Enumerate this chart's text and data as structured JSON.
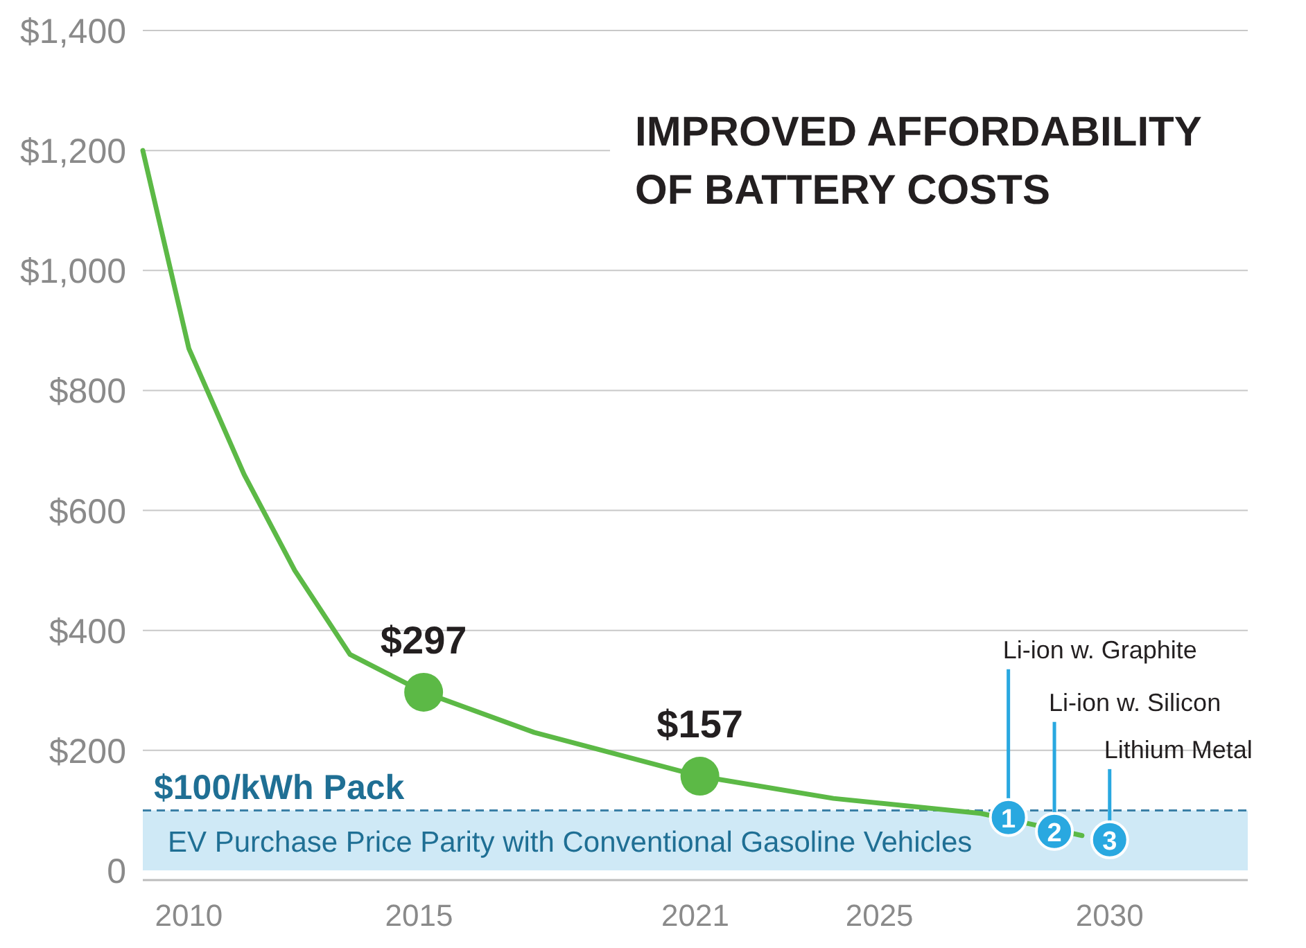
{
  "chart_data": {
    "type": "line",
    "title": "IMPROVED AFFORDABILITY OF BATTERY COSTS",
    "xlim": [
      2009,
      2033
    ],
    "xticks": [
      2010,
      2015,
      2021,
      2025,
      2030
    ],
    "ylim": [
      0,
      1400
    ],
    "yticks": [
      0,
      {
        "value": 200,
        "label": "$200"
      },
      {
        "value": 400,
        "label": "$400"
      },
      {
        "value": 600,
        "label": "$600"
      },
      {
        "value": 800,
        "label": "$800"
      },
      {
        "value": 1000,
        "label": "$1,000"
      },
      {
        "value": 1200,
        "label": "$1,200"
      },
      {
        "value": 1400,
        "label": "$1,400"
      }
    ],
    "grid": "y",
    "line_style": "solid",
    "series": [
      {
        "color": "#5cb946",
        "x": [
          2009,
          2010,
          2011.2,
          2012.3,
          2013.5,
          2015.1,
          2017.5,
          2021.1,
          2024,
          2027.2,
          2028.3,
          2029.4
        ],
        "values": [
          1200,
          870,
          660,
          500,
          360,
          297,
          230,
          157,
          120,
          95,
          77,
          58
        ]
      },
      {
        "type": "scatter",
        "color": "#5cb946",
        "x": [
          2015.1,
          2021.1
        ],
        "values": [
          297,
          157
        ],
        "value_labels": [
          "$297",
          "$157"
        ]
      },
      {
        "type": "scatter",
        "color": "#29a8e0",
        "x": [
          2027.8,
          2028.8,
          2030
        ],
        "values": [
          88,
          65,
          51
        ]
      }
    ],
    "ref_lines": [
      {
        "axis": "y",
        "value": 100,
        "label": "$100/kWh Pack",
        "color": "#3a7fa6",
        "line_style": "dashed"
      }
    ],
    "bands": [
      {
        "axis": "y",
        "from": 0,
        "to": 100,
        "label": "EV Purchase Price Parity with Conventional Gasoline Vehicles",
        "color": "#cfe9f6"
      }
    ],
    "annotations": [
      {
        "text": "Li-ion w. Graphite",
        "x": 2027.8,
        "y": 88
      },
      {
        "text": "1",
        "x": 2027.8,
        "y": 88
      },
      {
        "text": "Li-ion w. Silicon",
        "x": 2028.8,
        "y": 65
      },
      {
        "text": "2",
        "x": 2028.8,
        "y": 65
      },
      {
        "text": "Lithium Metal",
        "x": 2030,
        "y": 51
      },
      {
        "text": "3",
        "x": 2030,
        "y": 51
      }
    ]
  }
}
